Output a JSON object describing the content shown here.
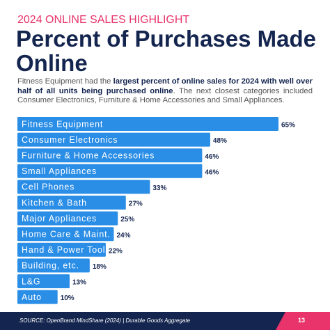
{
  "header": {
    "kicker": "2024 ONLINE SALES HIGHLIGHT",
    "title": "Percent of Purchases Made Online",
    "description": [
      "Fitness Equipment had the ",
      "largest percent of online sales for 2024 with well over half of all units being purchased online",
      ". The next closest categories included Consumer Electronics, Furniture & Home Accessories and Small Appliances."
    ]
  },
  "chart_data": {
    "type": "hbar",
    "color": "#2a8de6",
    "categories": [
      "Fitness Equipment",
      "Consumer Electronics",
      "Furniture & Home Accessories",
      "Small Appliances",
      "Cell Phones",
      "Kitchen & Bath",
      "Major Appliances",
      "Home Care & Maint.",
      "Hand & Power Tools",
      "Building, etc.",
      "L&G",
      "Auto"
    ],
    "values": [
      65,
      48,
      46,
      46,
      33,
      27,
      25,
      24,
      22,
      18,
      13,
      10
    ],
    "value_labels": [
      "65%",
      "48%",
      "46%",
      "46%",
      "33%",
      "27%",
      "25%",
      "24%",
      "22%",
      "18%",
      "13%",
      "10%"
    ]
  },
  "footer": {
    "source": "SOURCE: OpenBrand MindShare (2024) | Durable Goods Aggregate",
    "page": "13"
  }
}
